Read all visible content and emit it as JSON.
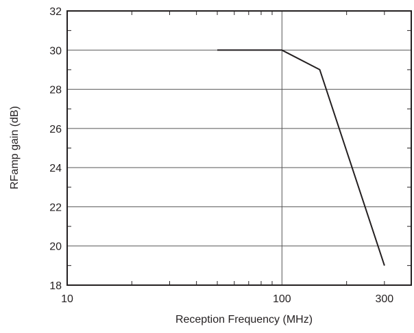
{
  "chart_data": {
    "type": "line",
    "xscale": "log",
    "xlabel": "Reception Frequency (MHz)",
    "ylabel": "RFamp gain (dB)",
    "xlim": [
      10,
      400
    ],
    "ylim": [
      18,
      32
    ],
    "x_ticks": [
      {
        "value": 10,
        "label": "10"
      },
      {
        "value": 100,
        "label": "100"
      },
      {
        "value": 300,
        "label": "300"
      }
    ],
    "y_ticks": [
      {
        "value": 18,
        "label": "18"
      },
      {
        "value": 20,
        "label": "20"
      },
      {
        "value": 22,
        "label": "22"
      },
      {
        "value": 24,
        "label": "24"
      },
      {
        "value": 26,
        "label": "26"
      },
      {
        "value": 28,
        "label": "28"
      },
      {
        "value": 30,
        "label": "30"
      },
      {
        "value": 32,
        "label": "32"
      }
    ],
    "grid": true,
    "series": [
      {
        "x": [
          50,
          100,
          150,
          300
        ],
        "y": [
          30,
          30,
          29,
          19
        ]
      }
    ],
    "colors": {
      "line": "#231f20",
      "frame": "#231f20",
      "grid": "#555555"
    }
  }
}
